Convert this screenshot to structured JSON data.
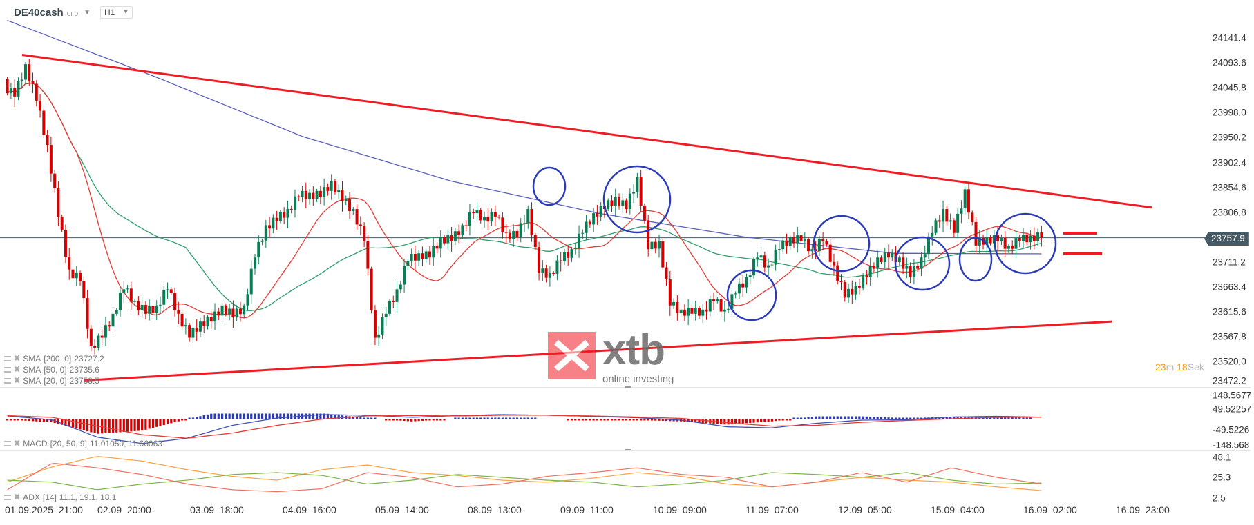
{
  "header": {
    "symbol": "DE40cash",
    "symbol_type": "CFD",
    "timeframe": "H1"
  },
  "countdown": {
    "minutes": "23",
    "m_unit": "m",
    "seconds": "18",
    "s_unit": "Sek"
  },
  "watermark": {
    "brand": "xtb",
    "tagline": "online investing"
  },
  "legends": {
    "sma200": {
      "label": "SMA",
      "params": "[200, 0]",
      "value": "23727.2"
    },
    "sma50": {
      "label": "SMA",
      "params": "[50, 0]",
      "value": "23735.6"
    },
    "sma20": {
      "label": "SMA",
      "params": "[20, 0]",
      "value": "23758.5"
    },
    "macd": {
      "label": "MACD",
      "params": "[20, 50, 9]",
      "value": "11.01050, 11.66063"
    },
    "adx": {
      "label": "ADX",
      "params": "[14]",
      "value": "11.1, 19.1, 18.1"
    }
  },
  "colors": {
    "up": "#0a7d55",
    "down": "#d40000",
    "sma200": "#5a5fb8",
    "sma50": "#2e9e6b",
    "sma20": "#e53935",
    "trendline": "#ee1c25",
    "annotation_circle": "#2b3ab8",
    "price_tag": "#455a64",
    "macd": "#3f51b5",
    "signal": "#e53935",
    "adx": "#ffa040",
    "plus_di": "#7cb342",
    "minus_di": "#f07060"
  },
  "chart_data": [
    {
      "type": "candlestick",
      "title": "",
      "price_axis_ticks": [
        "24141.4",
        "24093.6",
        "24045.8",
        "23998.0",
        "23950.2",
        "23902.4",
        "23854.6",
        "23806.8",
        "23711.2",
        "23663.4",
        "23615.6",
        "23567.8",
        "23520.0",
        "23472.2"
      ],
      "ylim": [
        23472.2,
        24141.4
      ],
      "current_price": "23757.9",
      "time_axis_ticks": [
        "01.09.2025  21:00",
        "02.09  20:00",
        "03.09  18:00",
        "04.09  16:00",
        "05.09  14:00",
        "08.09  13:00",
        "09.09  11:00",
        "10.09  09:00",
        "11.09  07:00",
        "12.09  05:00",
        "15.09  04:00",
        "16.09  02:00",
        "16.09  23:00"
      ],
      "closes": [
        24052,
        24029,
        24091,
        24021,
        23936,
        23798,
        23697,
        23674,
        23551,
        23566,
        23612,
        23659,
        23636,
        23612,
        23628,
        23659,
        23612,
        23566,
        23597,
        23597,
        23628,
        23605,
        23628,
        23720,
        23782,
        23790,
        23813,
        23836,
        23844,
        23836,
        23867,
        23828,
        23813,
        23751,
        23566,
        23612,
        23659,
        23713,
        23728,
        23720,
        23759,
        23751,
        23782,
        23805,
        23798,
        23798,
        23767,
        23759,
        23813,
        23690,
        23690,
        23713,
        23736,
        23767,
        23805,
        23813,
        23836,
        23813,
        23875,
        23736,
        23751,
        23628,
        23620,
        23612,
        23620,
        23636,
        23620,
        23651,
        23682,
        23720,
        23705,
        23736,
        23759,
        23751,
        23736,
        23751,
        23705,
        23643,
        23666,
        23682,
        23720,
        23720,
        23720,
        23682,
        23720,
        23767,
        23813,
        23767,
        23851,
        23743,
        23759,
        23751,
        23743,
        23751,
        23762,
        23758
      ],
      "sma200": [
        24175,
        24067,
        23952,
        23867,
        23805,
        23759,
        23728,
        23727
      ],
      "trendlines": [
        {
          "name": "resistance",
          "from": 24109,
          "to": 23816
        },
        {
          "name": "support",
          "from": 23484,
          "to": 23597
        }
      ]
    },
    {
      "type": "line",
      "title": "",
      "indicator": "MACD",
      "axis_ticks": [
        "148.5677",
        "49.52257",
        "-49.5226",
        "-148.568"
      ],
      "ylim": [
        -148.568,
        148.5677
      ],
      "macd": [
        18,
        -4,
        -104,
        -140,
        -110,
        -36,
        6,
        26,
        22,
        10,
        20,
        26,
        22,
        16,
        8,
        -6,
        -44,
        -50,
        -24,
        -6,
        -4,
        12,
        16,
        11
      ],
      "signal": [
        20,
        10,
        -40,
        -90,
        -110,
        -80,
        -36,
        0,
        18,
        20,
        18,
        22,
        22,
        18,
        12,
        4,
        -20,
        -40,
        -36,
        -18,
        -8,
        2,
        10,
        11.7
      ]
    },
    {
      "type": "line",
      "title": "",
      "indicator": "ADX",
      "axis_ticks": [
        "48.1",
        "25.3",
        "2.5"
      ],
      "ylim": [
        2.5,
        48.1
      ],
      "adx": [
        20,
        36,
        47,
        42,
        33,
        26,
        22,
        33,
        38,
        30,
        27,
        22,
        20,
        24,
        30,
        26,
        18,
        15,
        20,
        25,
        22,
        20,
        15,
        11.1
      ],
      "plus_di": [
        22,
        20,
        12,
        18,
        22,
        28,
        30,
        27,
        18,
        22,
        28,
        25,
        22,
        20,
        15,
        18,
        22,
        30,
        28,
        25,
        30,
        22,
        18,
        19.1
      ],
      "minus_di": [
        12,
        40,
        35,
        28,
        18,
        12,
        10,
        13,
        30,
        25,
        15,
        18,
        26,
        30,
        35,
        28,
        25,
        15,
        20,
        30,
        20,
        35,
        25,
        18.1
      ]
    }
  ]
}
